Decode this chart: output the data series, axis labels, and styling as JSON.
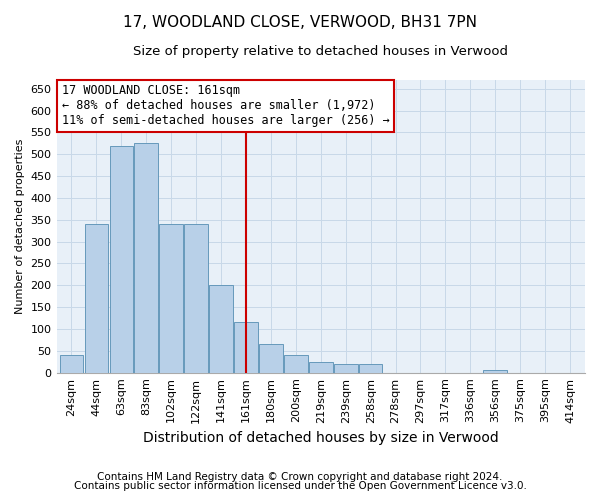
{
  "title": "17, WOODLAND CLOSE, VERWOOD, BH31 7PN",
  "subtitle": "Size of property relative to detached houses in Verwood",
  "xlabel": "Distribution of detached houses by size in Verwood",
  "ylabel": "Number of detached properties",
  "categories": [
    "24sqm",
    "44sqm",
    "63sqm",
    "83sqm",
    "102sqm",
    "122sqm",
    "141sqm",
    "161sqm",
    "180sqm",
    "200sqm",
    "219sqm",
    "239sqm",
    "258sqm",
    "278sqm",
    "297sqm",
    "317sqm",
    "336sqm",
    "356sqm",
    "375sqm",
    "395sqm",
    "414sqm"
  ],
  "values": [
    40,
    340,
    520,
    525,
    340,
    340,
    200,
    115,
    65,
    40,
    25,
    20,
    20,
    0,
    0,
    0,
    0,
    5,
    0,
    0,
    0
  ],
  "bar_color": "#b8d0e8",
  "bar_edge_color": "#6699bb",
  "highlight_index": 7,
  "highlight_color": "#cc0000",
  "annotation_text": "17 WOODLAND CLOSE: 161sqm\n← 88% of detached houses are smaller (1,972)\n11% of semi-detached houses are larger (256) →",
  "annotation_box_color": "#ffffff",
  "annotation_box_edge_color": "#cc0000",
  "ylim": [
    0,
    670
  ],
  "yticks": [
    0,
    50,
    100,
    150,
    200,
    250,
    300,
    350,
    400,
    450,
    500,
    550,
    600,
    650
  ],
  "grid_color": "#c8d8e8",
  "background_color": "#e8f0f8",
  "footer_line1": "Contains HM Land Registry data © Crown copyright and database right 2024.",
  "footer_line2": "Contains public sector information licensed under the Open Government Licence v3.0.",
  "title_fontsize": 11,
  "subtitle_fontsize": 9.5,
  "xlabel_fontsize": 10,
  "ylabel_fontsize": 8,
  "tick_fontsize": 8,
  "footer_fontsize": 7.5
}
